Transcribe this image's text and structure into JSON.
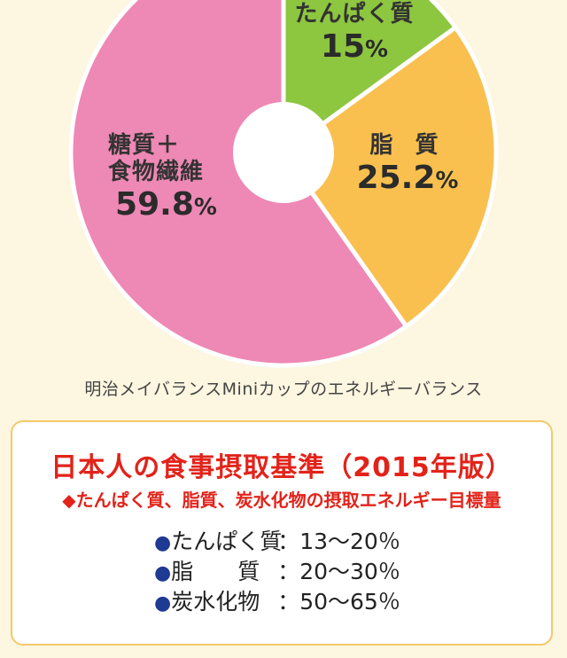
{
  "chart_data": {
    "type": "pie",
    "slices": [
      {
        "label": "たんぱく質",
        "value": 15,
        "display": "15",
        "color": "#8dc63f"
      },
      {
        "label": "脂 質",
        "value": 25.2,
        "display": "25.2",
        "color": "#f9c04f"
      },
      {
        "label_lines": [
          "糖質＋",
          "食物繊維"
        ],
        "label": "糖質＋食物繊維",
        "value": 59.8,
        "display": "59.8",
        "color": "#ee88b4"
      }
    ],
    "unit": "%",
    "title": "",
    "caption": "明治メイバランスMiniカップのエネルギーバランス",
    "start_angle_deg": 0,
    "donut_hole": true
  },
  "standards": {
    "title": "日本人の食事摂取基準（2015年版）",
    "subtitle": "◆たんぱく質、脂質、炭水化物の摂取エネルギー目標量",
    "bullet": "●",
    "items": [
      {
        "name": "たんぱく質",
        "range": "：13〜20％"
      },
      {
        "name": "脂　　質",
        "range": "：20〜30％"
      },
      {
        "name": "炭水化物",
        "range": "：50〜65％"
      }
    ]
  },
  "colors": {
    "background": "#fdf6e0",
    "box_border": "#f2c96b",
    "title_red": "#e2231a",
    "bullet_blue": "#1f3a93"
  }
}
